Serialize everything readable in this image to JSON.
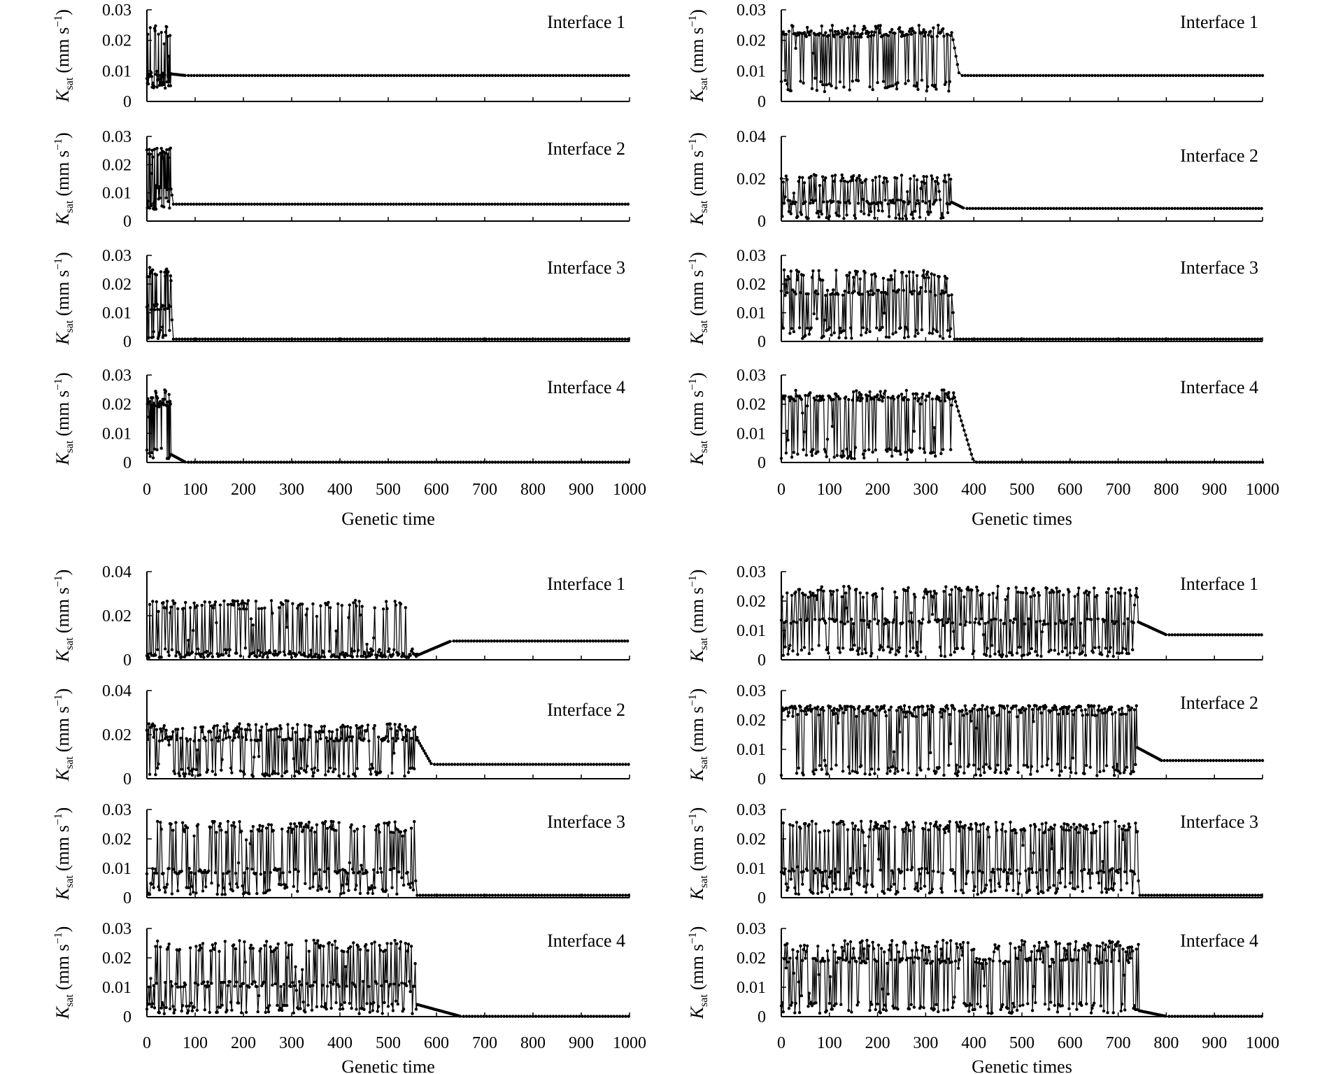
{
  "figure": {
    "ylabel_symbol": "K",
    "ylabel_subscript": "sat",
    "ylabel_unit_open": "(mm s",
    "ylabel_unit_exp": "−1",
    "ylabel_unit_close": ")"
  },
  "chart_data": [
    {
      "type": "line",
      "group": "top-left",
      "xlabel": "Genetic time",
      "xlim": [
        0,
        1000
      ],
      "xticks": [
        "0",
        "100",
        "200",
        "300",
        "400",
        "500",
        "600",
        "700",
        "800",
        "900",
        "1000"
      ],
      "panels": [
        {
          "label": "Interface 1",
          "ylim": [
            0,
            0.03
          ],
          "yticks": [
            "0",
            "0.01",
            "0.02",
            "0.03"
          ],
          "noise_end": 50,
          "noise_low": 0.004,
          "noise_high": 0.025,
          "noise_base": 0.009,
          "transition_end": 80,
          "final": 0.0085
        },
        {
          "label": "Interface 2",
          "ylim": [
            0,
            0.03
          ],
          "yticks": [
            "0",
            "0.01",
            "0.02",
            "0.03"
          ],
          "noise_end": 50,
          "noise_low": 0.004,
          "noise_high": 0.026,
          "noise_base": 0.012,
          "transition_end": 55,
          "final": 0.006
        },
        {
          "label": "Interface 3",
          "ylim": [
            0,
            0.03
          ],
          "yticks": [
            "0",
            "0.01",
            "0.02",
            "0.03"
          ],
          "noise_end": 50,
          "noise_low": 0.001,
          "noise_high": 0.026,
          "noise_base": 0.012,
          "transition_end": 55,
          "final": 0.0008
        },
        {
          "label": "Interface 4",
          "ylim": [
            0,
            0.03
          ],
          "yticks": [
            "0",
            "0.01",
            "0.02",
            "0.03"
          ],
          "noise_end": 50,
          "noise_low": 0.001,
          "noise_high": 0.025,
          "noise_base": 0.02,
          "transition_end": 80,
          "final": 0.0001
        }
      ]
    },
    {
      "type": "line",
      "group": "top-right",
      "xlabel": "Genetic times",
      "xlim": [
        0,
        1000
      ],
      "xticks": [
        "0",
        "100",
        "200",
        "300",
        "400",
        "500",
        "600",
        "700",
        "800",
        "900",
        "1000"
      ],
      "panels": [
        {
          "label": "Interface 1",
          "ylim": [
            0,
            0.03
          ],
          "yticks": [
            "0",
            "0.01",
            "0.02",
            "0.03"
          ],
          "noise_end": 355,
          "noise_low": 0.003,
          "noise_high": 0.025,
          "noise_base": 0.022,
          "transition_end": 370,
          "final": 0.0085
        },
        {
          "label": "Interface 2",
          "ylim": [
            0,
            0.04
          ],
          "yticks": [
            "0",
            "0.02",
            "0.04"
          ],
          "noise_end": 355,
          "noise_low": 0.001,
          "noise_high": 0.022,
          "noise_base": 0.009,
          "transition_end": 380,
          "final": 0.006
        },
        {
          "label": "Interface 3",
          "ylim": [
            0,
            0.03
          ],
          "yticks": [
            "0",
            "0.01",
            "0.02",
            "0.03"
          ],
          "noise_end": 355,
          "noise_low": 0.001,
          "noise_high": 0.025,
          "noise_base": 0.017,
          "transition_end": 360,
          "final": 0.0008
        },
        {
          "label": "Interface 4",
          "ylim": [
            0,
            0.03
          ],
          "yticks": [
            "0",
            "0.01",
            "0.02",
            "0.03"
          ],
          "noise_end": 360,
          "noise_low": 0.001,
          "noise_high": 0.025,
          "noise_base": 0.022,
          "transition_end": 400,
          "final": 0.0001
        }
      ]
    },
    {
      "type": "line",
      "group": "bottom-left",
      "xlabel": "Genetic time",
      "xlim": [
        0,
        1000
      ],
      "xticks": [
        "0",
        "100",
        "200",
        "300",
        "400",
        "500",
        "600",
        "700",
        "800",
        "900",
        "1000"
      ],
      "panels": [
        {
          "label": "Interface 1",
          "ylim": [
            0,
            0.04
          ],
          "yticks": [
            "0",
            "0.02",
            "0.04"
          ],
          "noise_end": 560,
          "noise_low": 0.001,
          "noise_high": 0.027,
          "noise_base": 0.002,
          "transition_end": 630,
          "final": 0.0085
        },
        {
          "label": "Interface 2",
          "ylim": [
            0,
            0.04
          ],
          "yticks": [
            "0",
            "0.02",
            "0.04"
          ],
          "noise_end": 560,
          "noise_low": 0.001,
          "noise_high": 0.025,
          "noise_base": 0.018,
          "transition_end": 590,
          "final": 0.0065
        },
        {
          "label": "Interface 3",
          "ylim": [
            0,
            0.03
          ],
          "yticks": [
            "0",
            "0.01",
            "0.02",
            "0.03"
          ],
          "noise_end": 555,
          "noise_low": 0.001,
          "noise_high": 0.026,
          "noise_base": 0.009,
          "transition_end": 560,
          "final": 0.0008
        },
        {
          "label": "Interface 4",
          "ylim": [
            0,
            0.03
          ],
          "yticks": [
            "0",
            "0.01",
            "0.02",
            "0.03"
          ],
          "noise_end": 560,
          "noise_low": 0.001,
          "noise_high": 0.026,
          "noise_base": 0.011,
          "transition_end": 650,
          "final": 0.0001
        }
      ]
    },
    {
      "type": "line",
      "group": "bottom-right",
      "xlabel": "Genetic times",
      "xlim": [
        0,
        1000
      ],
      "xticks": [
        "0",
        "100",
        "200",
        "300",
        "400",
        "500",
        "600",
        "700",
        "800",
        "900",
        "1000"
      ],
      "panels": [
        {
          "label": "Interface 1",
          "ylim": [
            0,
            0.03
          ],
          "yticks": [
            "0",
            "0.01",
            "0.02",
            "0.03"
          ],
          "noise_end": 740,
          "noise_low": 0.001,
          "noise_high": 0.025,
          "noise_base": 0.013,
          "transition_end": 800,
          "final": 0.0085
        },
        {
          "label": "Interface 2",
          "ylim": [
            0,
            0.03
          ],
          "yticks": [
            "0",
            "0.01",
            "0.02",
            "0.03"
          ],
          "noise_end": 740,
          "noise_low": 0.001,
          "noise_high": 0.025,
          "noise_base": 0.024,
          "transition_end": 790,
          "final": 0.0062
        },
        {
          "label": "Interface 3",
          "ylim": [
            0,
            0.03
          ],
          "yticks": [
            "0",
            "0.01",
            "0.02",
            "0.03"
          ],
          "noise_end": 740,
          "noise_low": 0.001,
          "noise_high": 0.026,
          "noise_base": 0.009,
          "transition_end": 745,
          "final": 0.0008
        },
        {
          "label": "Interface 4",
          "ylim": [
            0,
            0.03
          ],
          "yticks": [
            "0",
            "0.01",
            "0.02",
            "0.03"
          ],
          "noise_end": 745,
          "noise_low": 0.001,
          "noise_high": 0.026,
          "noise_base": 0.019,
          "transition_end": 800,
          "final": 0.0001
        }
      ]
    }
  ]
}
